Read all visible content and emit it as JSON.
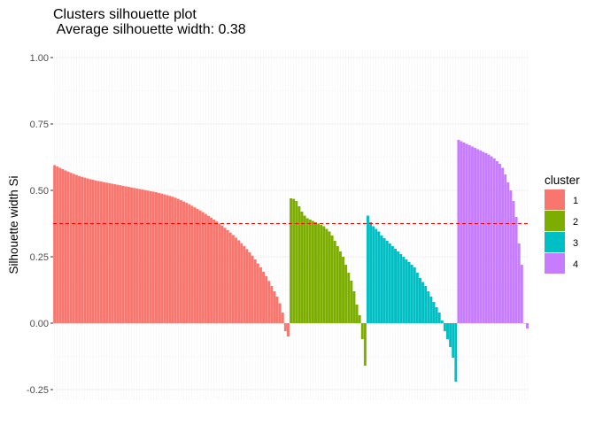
{
  "chart_data": {
    "type": "bar",
    "title": "Clusters silhouette plot",
    "subtitle": " Average silhouette width: 0.38",
    "ylabel": "Silhouette width Si",
    "xlabel": "",
    "ylim": [
      -0.29,
      1.03
    ],
    "yticks": [
      -0.25,
      0,
      0.25,
      0.5,
      0.75,
      1
    ],
    "ytick_labels": [
      "-0.25",
      "0.00",
      "0.25",
      "0.50",
      "0.75",
      "1.00"
    ],
    "average_silhouette": 0.375,
    "average_line_color": "#FF0000",
    "legend": {
      "title": "cluster",
      "position": "right"
    },
    "grid": true,
    "series": [
      {
        "name": "1",
        "color": "#F8766D",
        "values": [
          0.595,
          0.59,
          0.585,
          0.58,
          0.575,
          0.57,
          0.566,
          0.562,
          0.558,
          0.554,
          0.551,
          0.548,
          0.545,
          0.542,
          0.54,
          0.537,
          0.535,
          0.533,
          0.531,
          0.529,
          0.527,
          0.525,
          0.523,
          0.521,
          0.519,
          0.517,
          0.515,
          0.513,
          0.511,
          0.509,
          0.507,
          0.505,
          0.503,
          0.501,
          0.499,
          0.497,
          0.495,
          0.493,
          0.49,
          0.488,
          0.485,
          0.482,
          0.479,
          0.476,
          0.472,
          0.468,
          0.463,
          0.458,
          0.453,
          0.448,
          0.442,
          0.436,
          0.43,
          0.424,
          0.418,
          0.411,
          0.404,
          0.397,
          0.39,
          0.383,
          0.375,
          0.367,
          0.359,
          0.35,
          0.341,
          0.332,
          0.322,
          0.312,
          0.301,
          0.29,
          0.279,
          0.267,
          0.254,
          0.24,
          0.225,
          0.21,
          0.194,
          0.177,
          0.159,
          0.14,
          0.12,
          0.1,
          0.075,
          0.04,
          -0.03,
          -0.05
        ]
      },
      {
        "name": "2",
        "color": "#7CAE00",
        "values": [
          0.47,
          0.468,
          0.46,
          0.44,
          0.42,
          0.405,
          0.395,
          0.39,
          0.385,
          0.38,
          0.375,
          0.37,
          0.365,
          0.355,
          0.345,
          0.33,
          0.31,
          0.29,
          0.27,
          0.25,
          0.22,
          0.19,
          0.16,
          0.12,
          0.07,
          0.03,
          -0.06,
          -0.16
        ]
      },
      {
        "name": "3",
        "color": "#00BFC4",
        "values": [
          0.405,
          0.38,
          0.365,
          0.355,
          0.345,
          0.33,
          0.32,
          0.31,
          0.3,
          0.29,
          0.28,
          0.27,
          0.26,
          0.25,
          0.24,
          0.23,
          0.22,
          0.21,
          0.19,
          0.17,
          0.155,
          0.14,
          0.12,
          0.1,
          0.08,
          0.06,
          0.04,
          0.01,
          -0.03,
          -0.06,
          -0.09,
          -0.13,
          -0.22
        ]
      },
      {
        "name": "4",
        "color": "#C77CFF",
        "values": [
          0.69,
          0.685,
          0.68,
          0.675,
          0.67,
          0.665,
          0.66,
          0.655,
          0.65,
          0.645,
          0.64,
          0.635,
          0.628,
          0.62,
          0.61,
          0.6,
          0.585,
          0.56,
          0.53,
          0.5,
          0.46,
          0.4,
          0.3,
          0.22,
          0.0,
          -0.02
        ]
      }
    ]
  }
}
